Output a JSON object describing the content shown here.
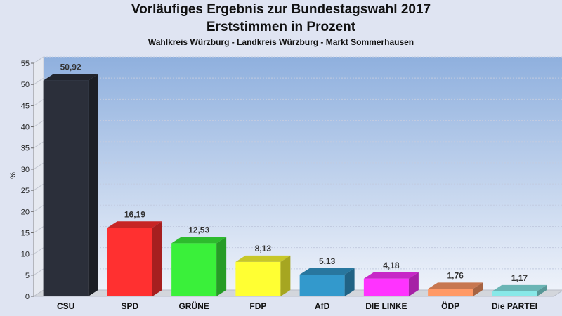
{
  "header": {
    "title_line1": "Vorläufiges Ergebnis zur Bundestagswahl 2017",
    "title_line2": "Erststimmen in Prozent",
    "subtitle": "Wahlkreis Würzburg - Landkreis Würzburg - Markt Sommerhausen"
  },
  "chart_data": {
    "type": "bar",
    "title": "Vorläufiges Ergebnis zur Bundestagswahl 2017 Erststimmen in Prozent",
    "subtitle": "Wahlkreis Würzburg - Landkreis Würzburg - Markt Sommerhausen",
    "xlabel": "",
    "ylabel": "%",
    "ylim": [
      0,
      55
    ],
    "yticks": [
      0,
      5,
      10,
      15,
      20,
      25,
      30,
      35,
      40,
      45,
      50,
      55
    ],
    "grid": true,
    "legend": "none",
    "categories": [
      "CSU",
      "SPD",
      "GRÜNE",
      "FDP",
      "AfD",
      "DIE LINKE",
      "ÖDP",
      "Die PARTEI"
    ],
    "values": [
      50.92,
      16.19,
      12.53,
      8.13,
      5.13,
      4.18,
      1.76,
      1.17
    ],
    "value_labels": [
      "50,92",
      "16,19",
      "12,53",
      "8,13",
      "5,13",
      "4,18",
      "1,76",
      "1,17"
    ],
    "colors": [
      "#2b2f3a",
      "#ff3030",
      "#3af03a",
      "#ffff33",
      "#3399cc",
      "#ff33ff",
      "#ff9966",
      "#88e8e8"
    ]
  }
}
